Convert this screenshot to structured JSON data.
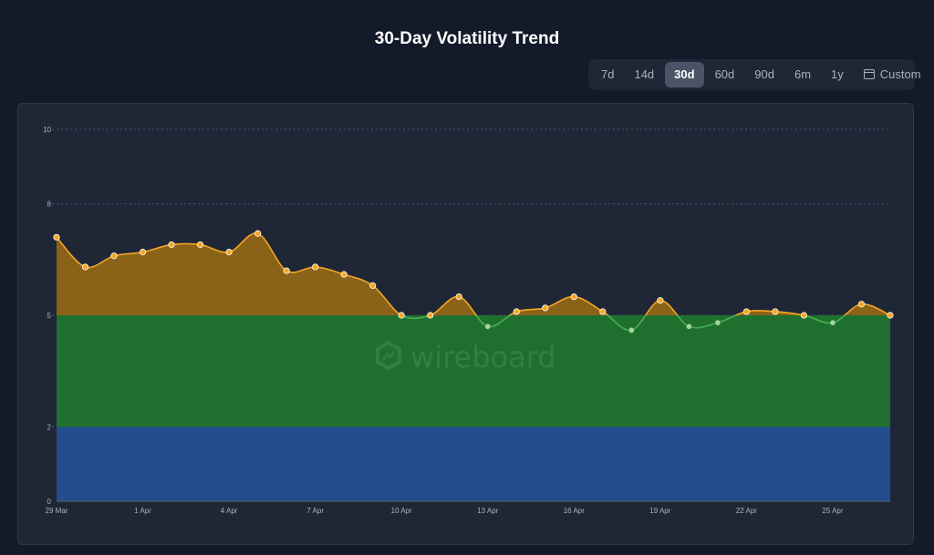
{
  "header": {
    "title": "30-Day Volatility Trend"
  },
  "range_selector": {
    "options": [
      {
        "label": "7d",
        "active": false
      },
      {
        "label": "14d",
        "active": false
      },
      {
        "label": "30d",
        "active": true
      },
      {
        "label": "60d",
        "active": false
      },
      {
        "label": "90d",
        "active": false
      },
      {
        "label": "6m",
        "active": false
      },
      {
        "label": "1y",
        "active": false
      },
      {
        "label": "Custom",
        "active": false,
        "icon": "calendar-icon"
      }
    ]
  },
  "watermark": {
    "text": "wireboard"
  },
  "footer": {
    "text": ""
  },
  "chart_data": {
    "type": "area",
    "title": "30-Day Volatility Trend",
    "x_tick_labels": [
      "29 Mar",
      "1 Apr",
      "4 Apr",
      "7 Apr",
      "10 Apr",
      "13 Apr",
      "16 Apr",
      "19 Apr",
      "22 Apr",
      "25 Apr"
    ],
    "y_ticks": [
      0,
      2,
      5,
      8,
      10
    ],
    "ylim": [
      0,
      10
    ],
    "grid": true,
    "threshold": 5,
    "bands": [
      {
        "from": 0,
        "to": 2,
        "color": "#234d8c"
      },
      {
        "from": 2,
        "to": 5,
        "color": "#1f702e"
      },
      {
        "from": 5,
        "to": "series",
        "color": "#8a6318"
      }
    ],
    "colors": {
      "above": "#f5a623",
      "below": "#4caf50",
      "point_below": "#a5d6a7"
    },
    "series": [
      {
        "values": [
          7.1,
          6.3,
          6.6,
          6.7,
          6.9,
          6.9,
          6.7,
          7.2,
          6.2,
          6.3,
          6.1,
          5.8,
          5.0,
          5.0,
          5.5,
          4.7,
          5.1,
          5.2,
          5.5,
          5.1,
          4.6,
          5.4,
          4.7,
          4.8,
          5.1,
          5.1,
          5.0,
          4.8,
          5.3,
          5.0
        ]
      }
    ]
  }
}
